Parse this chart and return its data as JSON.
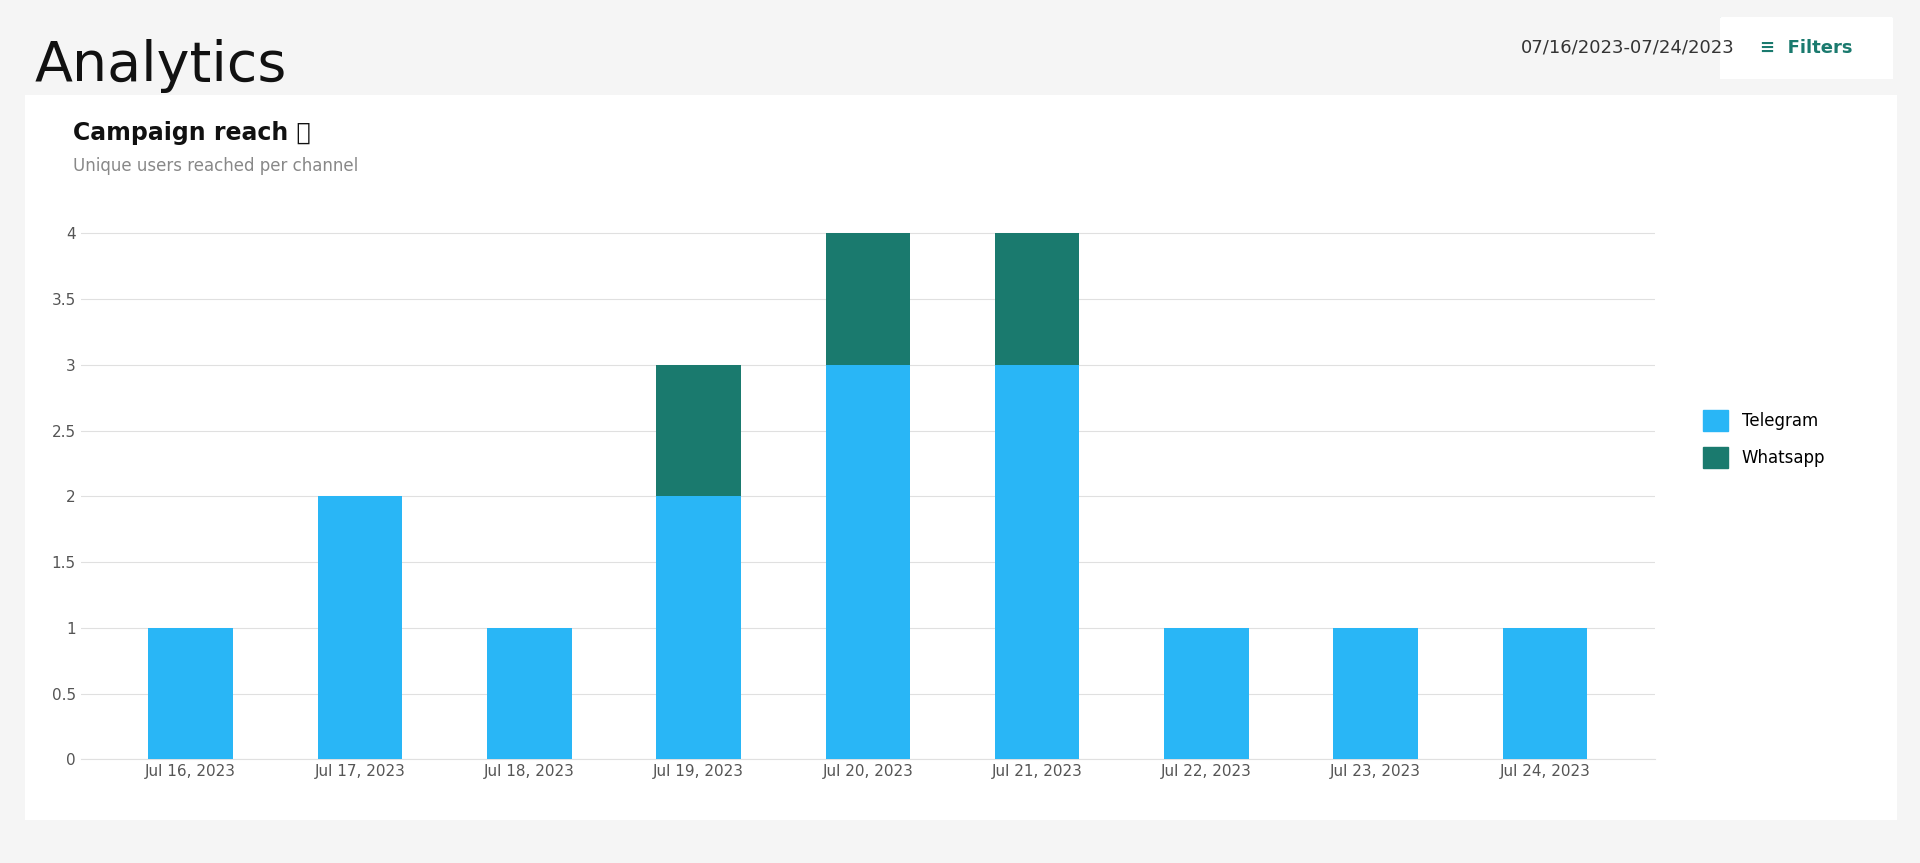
{
  "title": "Analytics",
  "date_range": "07/16/2023-07/24/2023",
  "chart_title": "Campaign reach ⓘ",
  "chart_subtitle": "Unique users reached per channel",
  "categories": [
    "Jul 16, 2023",
    "Jul 17, 2023",
    "Jul 18, 2023",
    "Jul 19, 2023",
    "Jul 20, 2023",
    "Jul 21, 2023",
    "Jul 22, 2023",
    "Jul 23, 2023",
    "Jul 24, 2023"
  ],
  "telegram_values": [
    1,
    2,
    1,
    2,
    3,
    3,
    1,
    1,
    1
  ],
  "whatsapp_values": [
    0,
    0,
    0,
    1,
    1,
    1,
    0,
    0,
    0
  ],
  "telegram_color": "#29B6F6",
  "whatsapp_color": "#1A7A6E",
  "ylim": [
    0,
    4.2
  ],
  "yticks": [
    0,
    0.5,
    1.0,
    1.5,
    2.0,
    2.5,
    3.0,
    3.5,
    4.0
  ],
  "background_color": "#f5f5f5",
  "chart_bg_color": "#ffffff",
  "grid_color": "#e0e0e0",
  "title_fontsize": 40,
  "chart_title_fontsize": 17,
  "subtitle_fontsize": 12,
  "axis_fontsize": 11,
  "legend_fontsize": 12,
  "bar_width": 0.5,
  "title_color": "#111111",
  "subtitle_color": "#888888",
  "axis_label_color": "#555555",
  "date_color": "#333333",
  "filter_color": "#1A7A6E",
  "legend_telegram_label": "Telegram",
  "legend_whatsapp_label": "Whatsapp"
}
